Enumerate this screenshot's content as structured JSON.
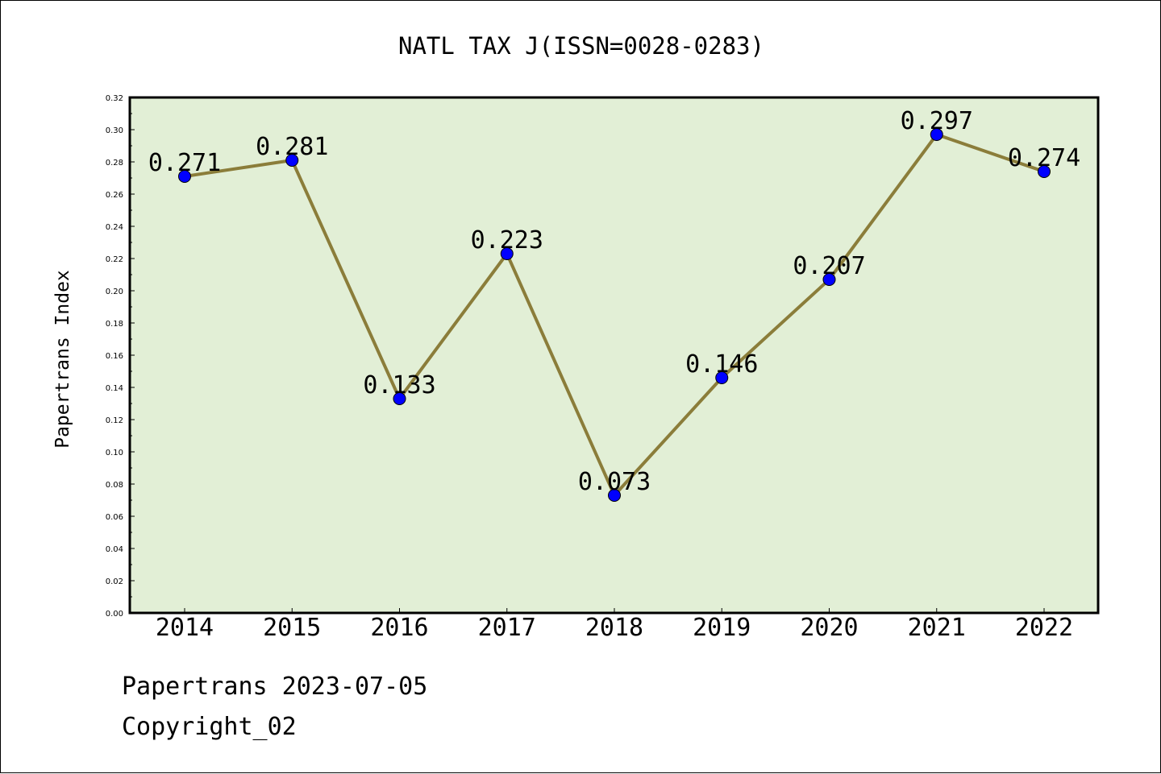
{
  "chart_data": {
    "type": "line",
    "title": "NATL TAX J(ISSN=0028-0283)",
    "xlabel": "",
    "ylabel": "Papertrans Index",
    "categories": [
      "2014",
      "2015",
      "2016",
      "2017",
      "2018",
      "2019",
      "2020",
      "2021",
      "2022"
    ],
    "series": [
      {
        "values": [
          0.271,
          0.281,
          0.133,
          0.223,
          0.073,
          0.146,
          0.207,
          0.297,
          0.274
        ],
        "data_labels": [
          "0.271",
          "0.281",
          "0.133",
          "0.223",
          "0.073",
          "0.146",
          "0.207",
          "0.297",
          "0.274"
        ]
      }
    ],
    "ylim": [
      0,
      0.32
    ],
    "yticks": [
      "0.00",
      "0.02",
      "0.04",
      "0.06",
      "0.08",
      "0.10",
      "0.12",
      "0.14",
      "0.16",
      "0.18",
      "0.20",
      "0.22",
      "0.24",
      "0.26",
      "0.28",
      "0.30",
      "0.32"
    ],
    "grid": false,
    "legend": "none",
    "colors": {
      "plot_background": "#e2efd6",
      "line": "#8b7d3a",
      "marker": "#0000ff",
      "axis": "#000000"
    }
  },
  "footer": {
    "line1": "Papertrans 2023-07-05",
    "line2": "Copyright_02"
  }
}
